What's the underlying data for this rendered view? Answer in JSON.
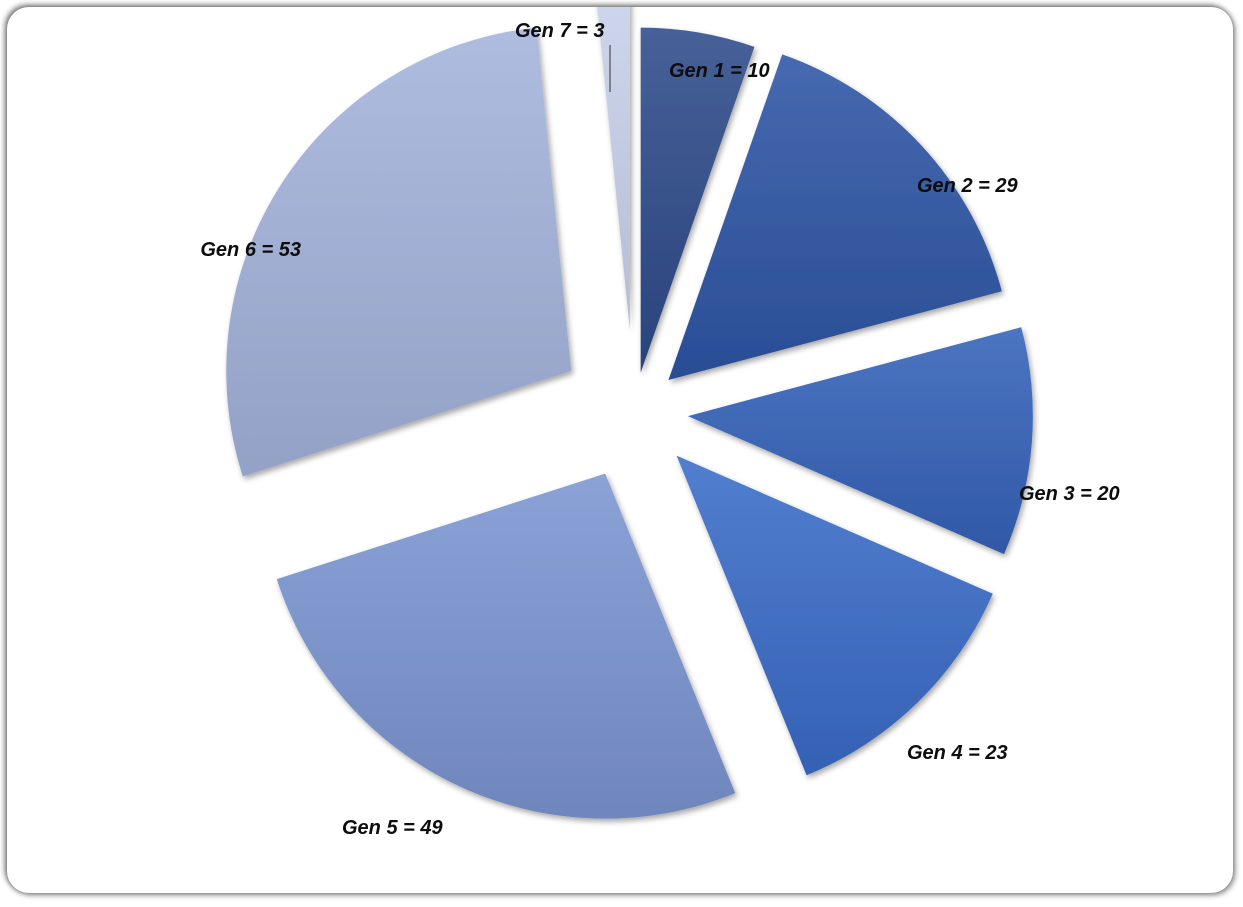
{
  "chart_data": {
    "type": "pie",
    "categories": [
      "Gen 1",
      "Gen 2",
      "Gen 3",
      "Gen 4",
      "Gen 5",
      "Gen 6",
      "Gen 7"
    ],
    "values": [
      10,
      29,
      20,
      23,
      49,
      53,
      3
    ],
    "labels": [
      "Gen 1 = 10",
      "Gen 2 = 29",
      "Gen 3 = 20",
      "Gen 4 = 23",
      "Gen 5 = 49",
      "Gen 6 = 53",
      "Gen 7 =  3"
    ],
    "colors": [
      "#2E4A8A",
      "#2D55A5",
      "#3462B8",
      "#3A6CC8",
      "#7B95D2",
      "#A3B3DC",
      "#C8D2EC"
    ],
    "start_angle_deg": 0,
    "direction": "clockwise",
    "exploded": true,
    "legend": "none",
    "title": ""
  }
}
